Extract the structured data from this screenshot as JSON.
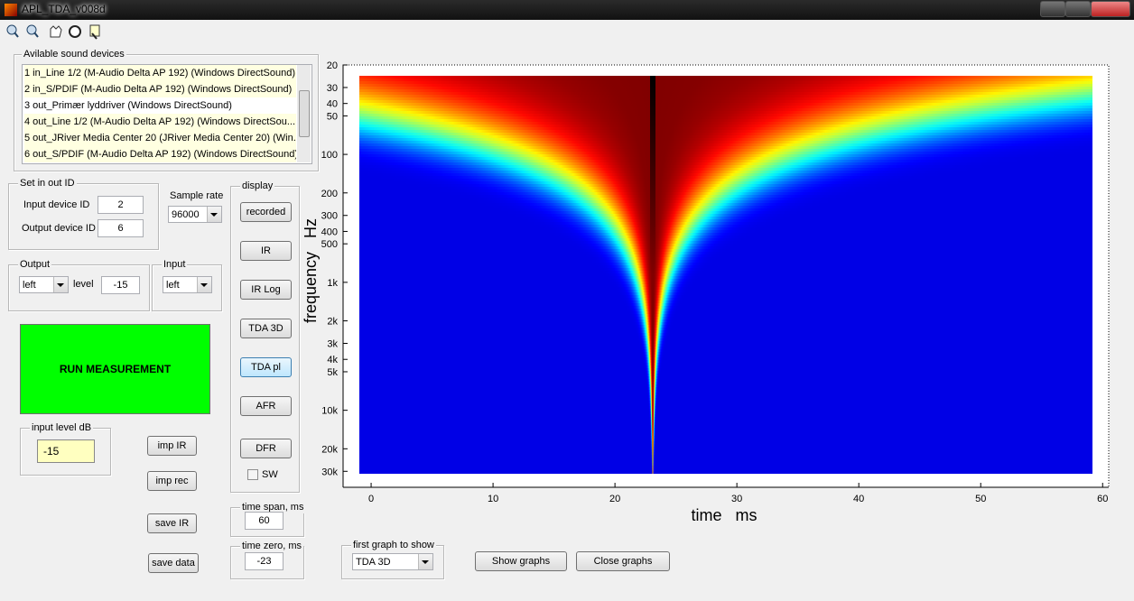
{
  "window": {
    "title": "APL_TDA_v008d"
  },
  "devices": {
    "title": "Avilable sound devices",
    "items": [
      "1 in_Line 1/2 (M-Audio Delta AP 192) (Windows DirectSound)",
      "2 in_S/PDIF (M-Audio Delta AP 192) (Windows DirectSound)",
      "3 out_Primær lyddriver (Windows DirectSound)",
      "4 out_Line 1/2 (M-Audio Delta AP 192) (Windows DirectSou...",
      "5 out_JRiver Media Center 20 (JRiver Media Center 20) (Win...",
      "6 out_S/PDIF (M-Audio Delta AP 192) (Windows DirectSound)"
    ]
  },
  "inout": {
    "title": "Set in out ID",
    "input_label": "Input device ID",
    "input_value": 2,
    "output_label": "Output device ID",
    "output_value": 6
  },
  "sample_rate": {
    "label": "Sample rate",
    "value": 96000
  },
  "output": {
    "title": "Output",
    "channel": "left",
    "level_label": "level",
    "level": -15
  },
  "input": {
    "title": "Input",
    "channel": "left"
  },
  "run_button": "RUN MEASUREMENT",
  "input_level": {
    "title": "input level dB",
    "value": -15
  },
  "file_buttons": [
    "imp IR",
    "imp rec",
    "save IR",
    "save data"
  ],
  "display": {
    "title": "display",
    "buttons": [
      "recorded",
      "IR",
      "IR Log",
      "TDA 3D",
      "TDA pl",
      "AFR",
      "DFR"
    ],
    "checkbox": "SW"
  },
  "time_span": {
    "title": "time span, ms",
    "value": 60
  },
  "time_zero": {
    "title": "time zero, ms",
    "value": -23
  },
  "first_graph": {
    "title": "first graph to show",
    "value": "TDA 3D"
  },
  "graph_buttons": [
    "Show graphs",
    "Close graphs"
  ],
  "plot": {
    "type": "heatmap",
    "xlabel": "time   ms",
    "ylabel": "frequency   Hz",
    "xlim": [
      -2.3,
      60.5
    ],
    "ylim": [
      20,
      40000
    ],
    "yscale": "log",
    "xticks": [
      0,
      10,
      20,
      30,
      40,
      50,
      60
    ],
    "yticks": [
      20,
      30,
      40,
      50,
      100,
      200,
      300,
      400,
      500,
      {
        "value": 1000,
        "label": "1k"
      },
      {
        "value": 2000,
        "label": "2k"
      },
      {
        "value": 3000,
        "label": "3k"
      },
      {
        "value": 4000,
        "label": "4k"
      },
      {
        "value": 5000,
        "label": "5k"
      },
      {
        "value": 10000,
        "label": "10k"
      },
      {
        "value": 20000,
        "label": "20k"
      },
      {
        "value": 30000,
        "label": "30k"
      }
    ]
  }
}
